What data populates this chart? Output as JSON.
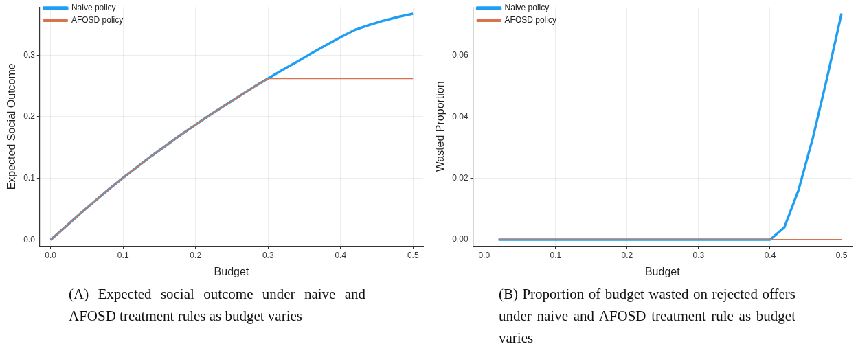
{
  "chart_data": [
    {
      "type": "line",
      "xlabel": "Budget",
      "ylabel": "Expected Social Outcome",
      "legend": "top left",
      "grid": true,
      "marker": "none",
      "line_style": "solid",
      "x": [
        0,
        0.02,
        0.04,
        0.06,
        0.08,
        0.1,
        0.12,
        0.14,
        0.16,
        0.18,
        0.2,
        0.22,
        0.24,
        0.26,
        0.28,
        0.3,
        0.32,
        0.34,
        0.36,
        0.38,
        0.4,
        0.42,
        0.44,
        0.46,
        0.48,
        0.5
      ],
      "series": [
        {
          "name": "Naive policy",
          "color": "#1e9ff2",
          "values": [
            0,
            0.021,
            0.042,
            0.062,
            0.082,
            0.101,
            0.119,
            0.137,
            0.154,
            0.171,
            0.187,
            0.203,
            0.218,
            0.233,
            0.248,
            0.262,
            0.276,
            0.289,
            0.303,
            0.316,
            0.329,
            0.341,
            0.349,
            0.356,
            0.362,
            0.367
          ]
        },
        {
          "name": "AFOSD policy",
          "color": "#d8734f",
          "values": [
            0,
            0.021,
            0.042,
            0.062,
            0.082,
            0.101,
            0.119,
            0.137,
            0.154,
            0.171,
            0.187,
            0.203,
            0.218,
            0.233,
            0.248,
            0.262,
            0.262,
            0.262,
            0.262,
            0.262,
            0.262,
            0.262,
            0.262,
            0.262,
            0.262,
            0.262
          ]
        }
      ],
      "xlim": [
        -0.015,
        0.514
      ],
      "xticks": [
        {
          "value": 0,
          "label": "0.0"
        },
        {
          "value": 0.1,
          "label": "0.1"
        },
        {
          "value": 0.2,
          "label": "0.2"
        },
        {
          "value": 0.3,
          "label": "0.3"
        },
        {
          "value": 0.4,
          "label": "0.4"
        },
        {
          "value": 0.5,
          "label": "0.5"
        }
      ],
      "ylim": [
        -0.01,
        0.378
      ],
      "yticks": [
        {
          "value": 0,
          "label": "0.0"
        },
        {
          "value": 0.1,
          "label": "0.1"
        },
        {
          "value": 0.2,
          "label": "0.2"
        },
        {
          "value": 0.3,
          "label": "0.3"
        }
      ],
      "annotations": [
        "(A) Expected social outcome under naive and AFOSD treatment rules as budget varies"
      ]
    },
    {
      "type": "line",
      "xlabel": "Budget",
      "ylabel": "Wasted Proportion",
      "legend": "top left",
      "grid": true,
      "marker": "none",
      "line_style": "solid",
      "x": [
        0.02,
        0.04,
        0.06,
        0.08,
        0.1,
        0.12,
        0.14,
        0.16,
        0.18,
        0.2,
        0.22,
        0.24,
        0.26,
        0.28,
        0.3,
        0.32,
        0.34,
        0.36,
        0.38,
        0.4,
        0.42,
        0.44,
        0.46,
        0.48,
        0.5
      ],
      "series": [
        {
          "name": "Naive policy",
          "color": "#1e9ff2",
          "values": [
            0,
            0,
            0,
            0,
            0,
            0,
            0,
            0,
            0,
            0,
            0,
            0,
            0,
            0,
            0,
            0,
            0,
            0,
            0,
            0,
            0.004,
            0.0163,
            0.0333,
            0.053,
            0.0738
          ]
        },
        {
          "name": "AFOSD policy",
          "color": "#d8734f",
          "values": [
            0,
            0,
            0,
            0,
            0,
            0,
            0,
            0,
            0,
            0,
            0,
            0,
            0,
            0,
            0,
            0,
            0,
            0,
            0,
            0,
            0,
            0,
            0,
            0,
            0
          ]
        }
      ],
      "xlim": [
        -0.0156,
        0.5144
      ],
      "xticks": [
        {
          "value": 0,
          "label": "0.0"
        },
        {
          "value": 0.1,
          "label": "0.1"
        },
        {
          "value": 0.2,
          "label": "0.2"
        },
        {
          "value": 0.3,
          "label": "0.3"
        },
        {
          "value": 0.4,
          "label": "0.4"
        },
        {
          "value": 0.5,
          "label": "0.5"
        }
      ],
      "ylim": [
        -0.0021,
        0.0759
      ],
      "yticks": [
        {
          "value": 0,
          "label": "0.00"
        },
        {
          "value": 0.02,
          "label": "0.02"
        },
        {
          "value": 0.04,
          "label": "0.04"
        },
        {
          "value": 0.06,
          "label": "0.06"
        }
      ],
      "annotations": [
        "(B) Proportion of budget wasted on rejected offers under naive and AFOSD treatment rule as budget varies"
      ]
    }
  ]
}
